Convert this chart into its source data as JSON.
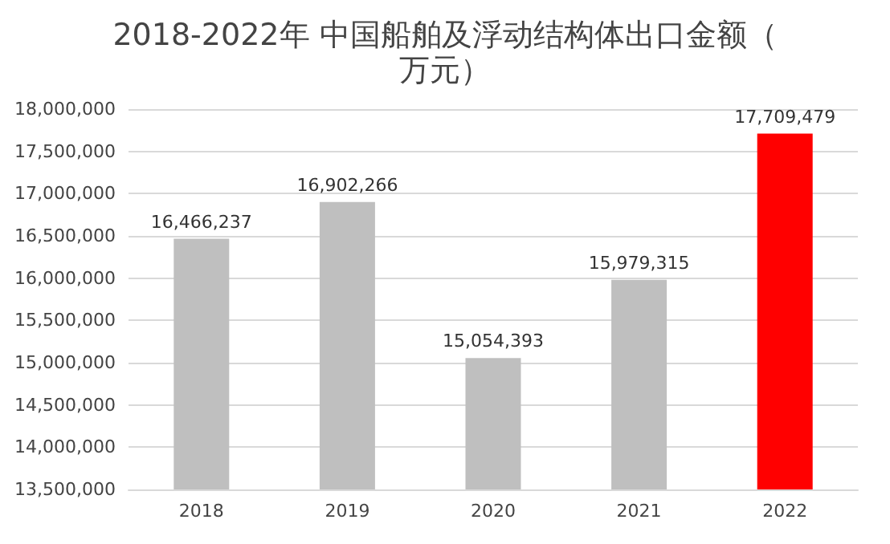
{
  "chart_data": {
    "type": "bar",
    "title": "2018-2022年 中国船舶及浮动结构体出口金额（万元）",
    "categories": [
      "2018",
      "2019",
      "2020",
      "2021",
      "2022"
    ],
    "values": [
      16466237,
      16902266,
      15054393,
      15979315,
      17709479
    ],
    "value_labels": [
      "16,466,237",
      "16,902,266",
      "15,054,393",
      "15,979,315",
      "17,709,479"
    ],
    "colors": [
      "#bfbfbf",
      "#bfbfbf",
      "#bfbfbf",
      "#bfbfbf",
      "#ff0000"
    ],
    "ylim": [
      13500000,
      18000000
    ],
    "yticks": [
      {
        "value": 13500000,
        "label": "13,500,000"
      },
      {
        "value": 14000000,
        "label": "14,000,000"
      },
      {
        "value": 14500000,
        "label": "14,500,000"
      },
      {
        "value": 15000000,
        "label": "15,000,000"
      },
      {
        "value": 15500000,
        "label": "15,500,000"
      },
      {
        "value": 16000000,
        "label": "16,000,000"
      },
      {
        "value": 16500000,
        "label": "16,500,000"
      },
      {
        "value": 17000000,
        "label": "17,000,000"
      },
      {
        "value": 17500000,
        "label": "17,500,000"
      },
      {
        "value": 18000000,
        "label": "18,000,000"
      }
    ],
    "grid": "y"
  }
}
